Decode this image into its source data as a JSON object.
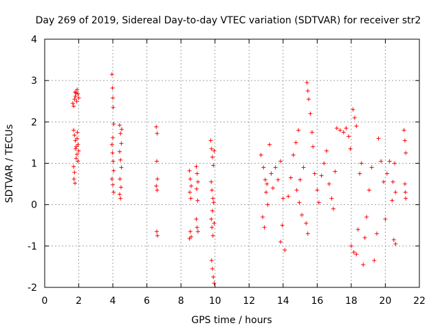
{
  "chart_data": {
    "type": "scatter",
    "title": "Day 269 of 2019, Sidereal Day-to-day VTEC variation (SDTVAR) for receiver str2",
    "xlabel": "GPS time / hours",
    "ylabel": "SDTVAR / TECUs",
    "xlim": [
      0,
      22
    ],
    "ylim": [
      -2,
      4
    ],
    "xticks": [
      "0",
      "2",
      "4",
      "6",
      "8",
      "10",
      "12",
      "14",
      "16",
      "18",
      "20",
      "22"
    ],
    "yticks": [
      "-2",
      "-1",
      "0",
      "1",
      "2",
      "3",
      "4"
    ],
    "grid": true,
    "marker": "+",
    "series_color": "#ff0000",
    "series": [
      {
        "name": "SDTVAR",
        "points": [
          [
            1.65,
            2.45
          ],
          [
            1.7,
            2.38
          ],
          [
            1.75,
            2.55
          ],
          [
            1.8,
            2.62
          ],
          [
            1.85,
            2.7
          ],
          [
            1.9,
            2.78
          ],
          [
            1.95,
            2.68
          ],
          [
            2.0,
            2.58
          ],
          [
            1.88,
            2.5
          ],
          [
            1.78,
            2.72
          ],
          [
            1.7,
            1.8
          ],
          [
            1.75,
            1.68
          ],
          [
            1.8,
            1.55
          ],
          [
            1.85,
            1.4
          ],
          [
            1.9,
            1.22
          ],
          [
            1.95,
            1.05
          ],
          [
            1.82,
            1.35
          ],
          [
            1.9,
            1.6
          ],
          [
            1.95,
            1.45
          ],
          [
            2.0,
            1.3
          ],
          [
            1.7,
            0.92
          ],
          [
            1.75,
            0.78
          ],
          [
            1.72,
            0.62
          ],
          [
            1.78,
            0.52
          ],
          [
            1.85,
            1.12
          ],
          [
            1.92,
            1.75
          ],
          [
            3.95,
            3.15
          ],
          [
            3.98,
            2.82
          ],
          [
            4.0,
            2.58
          ],
          [
            4.02,
            2.35
          ],
          [
            4.05,
            1.95
          ],
          [
            4.0,
            1.62
          ],
          [
            3.95,
            1.45
          ],
          [
            3.98,
            1.25
          ],
          [
            4.02,
            1.05
          ],
          [
            4.05,
            0.82
          ],
          [
            3.95,
            0.62
          ],
          [
            4.0,
            0.48
          ],
          [
            4.05,
            0.3
          ],
          [
            4.4,
            1.92
          ],
          [
            4.45,
            1.72
          ],
          [
            4.5,
            1.48
          ],
          [
            4.4,
            1.28
          ],
          [
            4.45,
            1.08
          ],
          [
            4.5,
            0.9
          ],
          [
            4.42,
            0.62
          ],
          [
            4.48,
            0.42
          ],
          [
            4.4,
            0.25
          ],
          [
            4.45,
            0.15
          ],
          [
            4.52,
            1.82
          ],
          [
            6.55,
            1.88
          ],
          [
            6.6,
            1.72
          ],
          [
            6.58,
            1.05
          ],
          [
            6.62,
            0.62
          ],
          [
            6.55,
            0.45
          ],
          [
            6.6,
            0.35
          ],
          [
            6.58,
            -0.65
          ],
          [
            6.62,
            -0.75
          ],
          [
            8.5,
            0.82
          ],
          [
            8.55,
            0.62
          ],
          [
            8.6,
            0.45
          ],
          [
            8.52,
            0.3
          ],
          [
            8.58,
            0.15
          ],
          [
            8.55,
            -0.65
          ],
          [
            8.6,
            -0.78
          ],
          [
            8.5,
            -0.82
          ],
          [
            8.9,
            0.92
          ],
          [
            8.95,
            0.75
          ],
          [
            9.0,
            0.55
          ],
          [
            8.92,
            0.38
          ],
          [
            8.98,
            0.1
          ],
          [
            8.9,
            -0.35
          ],
          [
            8.95,
            -0.55
          ],
          [
            9.0,
            -0.65
          ],
          [
            9.75,
            1.55
          ],
          [
            9.8,
            1.35
          ],
          [
            9.85,
            1.15
          ],
          [
            9.9,
            0.95
          ],
          [
            9.95,
            1.3
          ],
          [
            9.78,
            0.55
          ],
          [
            9.82,
            0.35
          ],
          [
            9.88,
            0.15
          ],
          [
            9.92,
            0.05
          ],
          [
            9.85,
            -0.15
          ],
          [
            9.78,
            -0.35
          ],
          [
            9.82,
            -0.55
          ],
          [
            9.88,
            -0.75
          ],
          [
            9.95,
            -0.45
          ],
          [
            9.8,
            -1.35
          ],
          [
            9.85,
            -1.55
          ],
          [
            9.9,
            -1.75
          ],
          [
            9.95,
            -1.9
          ],
          [
            12.7,
            1.2
          ],
          [
            12.85,
            0.9
          ],
          [
            12.95,
            0.6
          ],
          [
            13.0,
            0.3
          ],
          [
            13.1,
            0.0
          ],
          [
            12.8,
            -0.3
          ],
          [
            12.9,
            -0.55
          ],
          [
            13.05,
            0.5
          ],
          [
            13.2,
            1.45
          ],
          [
            13.3,
            0.75
          ],
          [
            13.4,
            0.4
          ],
          [
            13.55,
            0.9
          ],
          [
            13.7,
            0.6
          ],
          [
            13.85,
            1.05
          ],
          [
            14.0,
            0.15
          ],
          [
            13.95,
            -0.5
          ],
          [
            13.85,
            -0.9
          ],
          [
            14.1,
            -1.1
          ],
          [
            14.3,
            0.2
          ],
          [
            14.45,
            0.65
          ],
          [
            14.6,
            1.2
          ],
          [
            14.75,
            1.5
          ],
          [
            14.9,
            1.8
          ],
          [
            14.8,
            0.35
          ],
          [
            14.95,
            0.05
          ],
          [
            15.1,
            -0.25
          ],
          [
            15.0,
            0.6
          ],
          [
            15.2,
            0.9
          ],
          [
            15.35,
            -0.45
          ],
          [
            15.45,
            -0.7
          ],
          [
            15.4,
            2.95
          ],
          [
            15.45,
            2.75
          ],
          [
            15.5,
            2.55
          ],
          [
            15.6,
            2.2
          ],
          [
            15.7,
            1.75
          ],
          [
            15.75,
            1.4
          ],
          [
            15.85,
            0.75
          ],
          [
            16.0,
            0.35
          ],
          [
            16.1,
            0.05
          ],
          [
            16.25,
            0.7
          ],
          [
            16.4,
            1.0
          ],
          [
            16.55,
            1.3
          ],
          [
            16.7,
            0.5
          ],
          [
            16.85,
            0.15
          ],
          [
            16.95,
            -0.1
          ],
          [
            17.05,
            0.8
          ],
          [
            17.15,
            1.85
          ],
          [
            17.35,
            1.8
          ],
          [
            17.55,
            1.75
          ],
          [
            17.7,
            1.85
          ],
          [
            17.85,
            1.65
          ],
          [
            17.95,
            1.35
          ],
          [
            18.1,
            2.3
          ],
          [
            18.2,
            2.1
          ],
          [
            18.3,
            1.9
          ],
          [
            18.0,
            -1.0
          ],
          [
            18.15,
            -1.15
          ],
          [
            18.3,
            -1.2
          ],
          [
            18.4,
            -0.6
          ],
          [
            18.5,
            0.75
          ],
          [
            18.6,
            1.0
          ],
          [
            18.7,
            -1.45
          ],
          [
            18.8,
            -0.8
          ],
          [
            18.9,
            -0.3
          ],
          [
            19.05,
            0.35
          ],
          [
            19.2,
            0.9
          ],
          [
            19.35,
            -1.35
          ],
          [
            19.5,
            -0.7
          ],
          [
            19.6,
            1.6
          ],
          [
            19.75,
            1.05
          ],
          [
            19.9,
            0.55
          ],
          [
            20.0,
            -0.35
          ],
          [
            20.1,
            0.75
          ],
          [
            20.25,
            1.05
          ],
          [
            20.4,
            0.1
          ],
          [
            20.5,
            -0.85
          ],
          [
            20.6,
            -0.95
          ],
          [
            20.55,
            1.0
          ],
          [
            20.6,
            0.3
          ],
          [
            20.45,
            0.55
          ],
          [
            21.1,
            1.8
          ],
          [
            21.15,
            1.55
          ],
          [
            21.2,
            1.25
          ],
          [
            21.15,
            0.5
          ],
          [
            21.18,
            0.3
          ],
          [
            21.2,
            0.15
          ]
        ]
      }
    ]
  }
}
